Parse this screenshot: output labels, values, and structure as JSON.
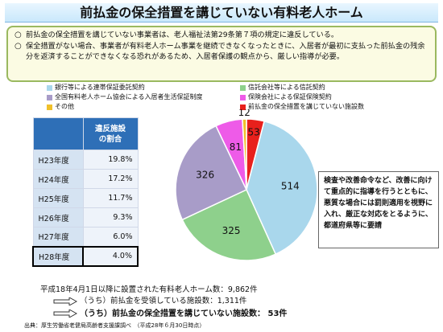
{
  "title": "前払金の保全措置を講じていない有料老人ホーム",
  "notes": [
    "前払金の保全措置を講じていない事業者は、老人福祉法第29条第７項の規定に違反している。",
    "保全措置がない場合、事業者が有料老人ホーム事業を継続できなくなったときに、入居者が最初に支払った前払金の残余分を返済することができなくなる恐れがあるため、入居者保護の観点から、厳しい指導が必要。"
  ],
  "legend": [
    {
      "label": "銀行等による連帯保証委託契約",
      "color": "#a9d7ec"
    },
    {
      "label": "信託会社等による信託契約",
      "color": "#8ed08c"
    },
    {
      "label": "全国有料老人ホーム協会による入居者生活保証制度",
      "color": "#a89cc8"
    },
    {
      "label": "保険会社による保証保険契約",
      "color": "#ee5be8"
    },
    {
      "label": "その他",
      "color": "#f0c02a"
    },
    {
      "label": "前払金の保全措置を講じていない施設数",
      "color": "#e8201c"
    }
  ],
  "table": {
    "header_blank": "",
    "header": "違反施設\nの割合",
    "rows": [
      {
        "year": "H23年度",
        "pct": "19.8%"
      },
      {
        "year": "H24年度",
        "pct": "17.2%"
      },
      {
        "year": "H25年度",
        "pct": "11.7%"
      },
      {
        "year": "H26年度",
        "pct": "9.3%"
      },
      {
        "year": "H27年度",
        "pct": "6.0%"
      },
      {
        "year": "H28年度",
        "pct": "4.0%"
      }
    ]
  },
  "chart_data": {
    "type": "pie",
    "slices": [
      {
        "label": "前払金の保全措置を講じていない施設数",
        "value": 53,
        "color": "#e8201c"
      },
      {
        "label": "銀行等による連帯保証委託契約",
        "value": 514,
        "color": "#a9d7ec"
      },
      {
        "label": "信託会社等による信託契約",
        "value": 325,
        "color": "#8ed08c"
      },
      {
        "label": "全国有料老人ホーム協会による入居者生活保証制度",
        "value": 326,
        "color": "#a89cc8"
      },
      {
        "label": "保険会社による保証保険契約",
        "value": 81,
        "color": "#ee5be8"
      },
      {
        "label": "その他",
        "value": 12,
        "color": "#f0c02a"
      }
    ]
  },
  "callout": "検査や改善命令など、改善に向けて重点的に指導を行うとともに、悪質な場合には罰則適用を視野に入れ、厳正な対応をとるように、都道府県等に要請",
  "stats": {
    "line1": "平成18年4月1日以降に設置された有料老人ホーム数：9,862件",
    "line2": "（うち）前払金を受領している施設数：1,311件",
    "line3": "（うち）前払金の保全措置を講じていない施設数： 53件"
  },
  "source": "出典：厚生労働省老健局高齢者支援課調べ　（平成28年６月30日時点）"
}
